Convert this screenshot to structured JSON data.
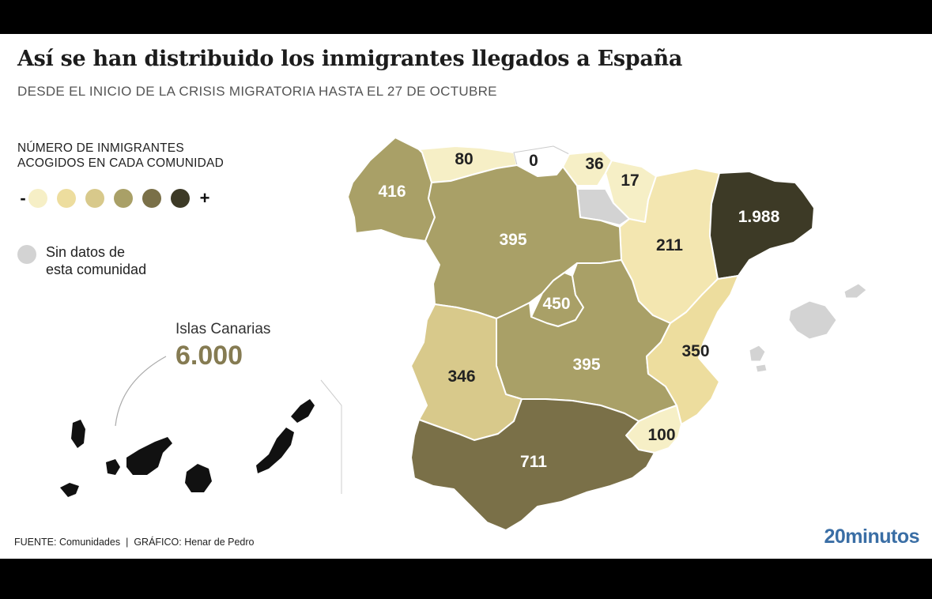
{
  "header": {
    "title": "Así se han distribuido los inmigrantes llegados a España",
    "subtitle": "DESDE EL INICIO DE LA CRISIS MIGRATORIA HASTA EL 27 DE OCTUBRE"
  },
  "legend": {
    "title_line1": "NÚMERO DE INMIGRANTES",
    "title_line2": "ACOGIDOS EN CADA COMUNIDAD",
    "min_label": "-",
    "max_label": "+",
    "scale_colors": [
      "#f6efc6",
      "#eddd9e",
      "#d8c98b",
      "#a9a067",
      "#7a7048",
      "#3d3a26"
    ],
    "nodata_line1": "Sin datos de",
    "nodata_line2": "esta comunidad",
    "nodata_color": "#d3d3d3"
  },
  "canarias": {
    "name": "Islas Canarias",
    "value": "6.000",
    "fill": "#111111"
  },
  "regions": [
    {
      "name": "Galicia",
      "value": "416",
      "fill": "#a9a067",
      "label_color": "#ffffff"
    },
    {
      "name": "Asturias",
      "value": "80",
      "fill": "#f6efc6",
      "label_color": "#222222"
    },
    {
      "name": "Cantabria",
      "value": "0",
      "fill": "#ffffff",
      "label_color": "#222222"
    },
    {
      "name": "País Vasco",
      "value": "36",
      "fill": "#f6efc6",
      "label_color": "#222222"
    },
    {
      "name": "Navarra",
      "value": "17",
      "fill": "#f6efc6",
      "label_color": "#222222"
    },
    {
      "name": "La Rioja",
      "value": "",
      "fill": "#d3d3d3",
      "label_color": "#222222"
    },
    {
      "name": "Aragón",
      "value": "211",
      "fill": "#f3e6b0",
      "label_color": "#222222"
    },
    {
      "name": "Cataluña",
      "value": "1.988",
      "fill": "#3d3a26",
      "label_color": "#ffffff"
    },
    {
      "name": "Castilla y León",
      "value": "395",
      "fill": "#a9a067",
      "label_color": "#ffffff"
    },
    {
      "name": "Comunidad de Madrid",
      "value": "450",
      "fill": "#a9a067",
      "label_color": "#ffffff"
    },
    {
      "name": "Castilla-La Mancha",
      "value": "395",
      "fill": "#a9a067",
      "label_color": "#ffffff"
    },
    {
      "name": "Extremadura",
      "value": "346",
      "fill": "#d8c98b",
      "label_color": "#222222"
    },
    {
      "name": "Comunidad Valenciana",
      "value": "350",
      "fill": "#eddd9e",
      "label_color": "#222222"
    },
    {
      "name": "Región de Murcia",
      "value": "100",
      "fill": "#f6efc6",
      "label_color": "#222222"
    },
    {
      "name": "Andalucía",
      "value": "711",
      "fill": "#7a7048",
      "label_color": "#ffffff"
    },
    {
      "name": "Islas Baleares",
      "value": "",
      "fill": "#d3d3d3",
      "label_color": "#222222"
    }
  ],
  "footer": {
    "source": "FUENTE: Comunidades",
    "separator": "|",
    "credit": "GRÁFICO: Henar de Pedro",
    "logo": "20minutos"
  }
}
